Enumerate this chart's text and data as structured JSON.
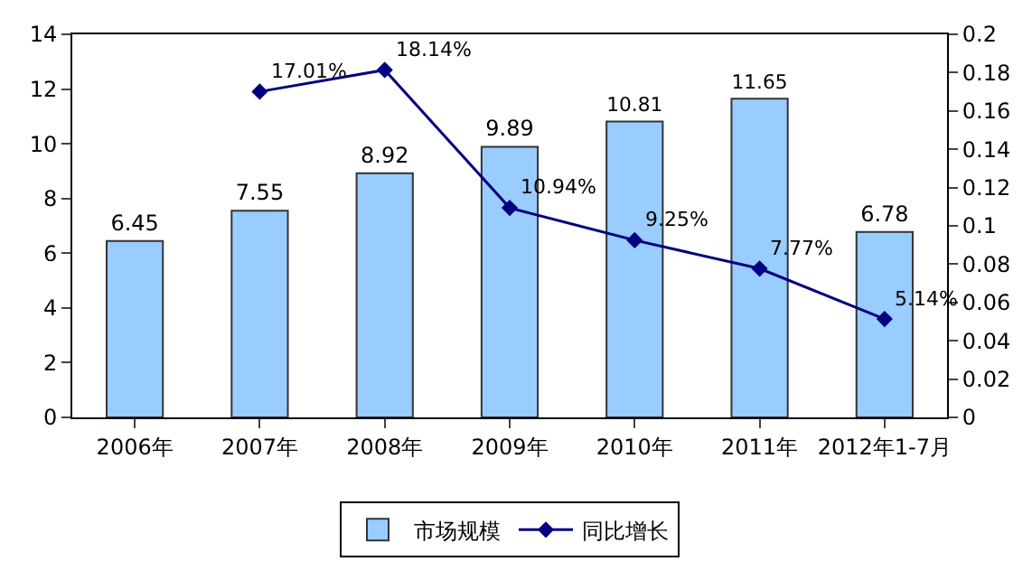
{
  "chart_data": {
    "type": "bar",
    "categories": [
      "2006年",
      "2007年",
      "2008年",
      "2009年",
      "2010年",
      "2011年",
      "2012年1-7月"
    ],
    "series": [
      {
        "name": "市场规模",
        "color": "#99ccff",
        "values": [
          6.45,
          7.55,
          8.92,
          9.89,
          10.81,
          11.65,
          6.78
        ]
      },
      {
        "name": "同比增长",
        "type": "line",
        "axis": "y2",
        "color": "#000080",
        "marker": "diamond",
        "values": [
          null,
          0.1701,
          0.1814,
          0.1094,
          0.0925,
          0.0777,
          0.0514
        ],
        "value_labels": [
          null,
          "17.01%",
          "18.14%",
          "10.94%",
          "9.25%",
          "7.77%",
          "5.14%"
        ]
      }
    ],
    "data_labels": true,
    "ylim": [
      0,
      14
    ],
    "yticks": [
      0,
      2,
      4,
      6,
      8,
      10,
      12,
      14
    ],
    "y2lim": [
      0,
      0.2
    ],
    "y2ticks": [
      0,
      0.02,
      0.04,
      0.06,
      0.08,
      0.1,
      0.12,
      0.14,
      0.16,
      0.18,
      0.2
    ],
    "legend": "bottom"
  }
}
